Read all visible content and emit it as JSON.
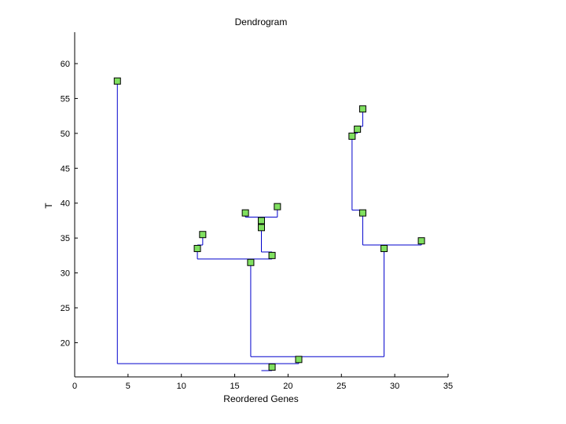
{
  "chart_data": {
    "type": "dendrogram",
    "title": "Dendrogram",
    "xlabel": "Reordered Genes",
    "ylabel": "T",
    "xlim": [
      0,
      35
    ],
    "ylim": [
      15.1,
      64.5
    ],
    "xticks": [
      0,
      5,
      10,
      15,
      20,
      25,
      30,
      35
    ],
    "yticks": [
      20,
      25,
      30,
      35,
      40,
      45,
      50,
      55,
      60
    ],
    "grid": false,
    "line_color": "#0000cc",
    "marker_fill": "#80e060",
    "segments": [
      {
        "x1": 4,
        "y1": 57.5,
        "x2": 4,
        "y2": 17
      },
      {
        "x1": 4,
        "y1": 17,
        "x2": 21,
        "y2": 17
      },
      {
        "x1": 21,
        "y1": 17,
        "x2": 21,
        "y2": 17.6
      },
      {
        "x1": 17.5,
        "y1": 16,
        "x2": 18.5,
        "y2": 16
      },
      {
        "x1": 18.5,
        "y1": 16,
        "x2": 18.5,
        "y2": 16.5
      },
      {
        "x1": 16.5,
        "y1": 18,
        "x2": 29,
        "y2": 18
      },
      {
        "x1": 16.5,
        "y1": 18,
        "x2": 16.5,
        "y2": 31.5
      },
      {
        "x1": 29,
        "y1": 18,
        "x2": 29,
        "y2": 33.5
      },
      {
        "x1": 11.5,
        "y1": 32,
        "x2": 18.5,
        "y2": 32
      },
      {
        "x1": 11.5,
        "y1": 32,
        "x2": 11.5,
        "y2": 33.5
      },
      {
        "x1": 18.5,
        "y1": 32,
        "x2": 18.5,
        "y2": 32.5
      },
      {
        "x1": 11.5,
        "y1": 34,
        "x2": 12,
        "y2": 34
      },
      {
        "x1": 12,
        "y1": 34,
        "x2": 12,
        "y2": 35.5
      },
      {
        "x1": 17.5,
        "y1": 33,
        "x2": 18.5,
        "y2": 33
      },
      {
        "x1": 17.5,
        "y1": 33,
        "x2": 17.5,
        "y2": 36.5
      },
      {
        "x1": 18.5,
        "y1": 33,
        "x2": 18.5,
        "y2": 32.5
      },
      {
        "x1": 17.5,
        "y1": 36.5,
        "x2": 17.5,
        "y2": 37.5
      },
      {
        "x1": 16,
        "y1": 38,
        "x2": 19,
        "y2": 38
      },
      {
        "x1": 16,
        "y1": 38,
        "x2": 16,
        "y2": 38.6
      },
      {
        "x1": 19,
        "y1": 38,
        "x2": 19,
        "y2": 39.5
      },
      {
        "x1": 27,
        "y1": 34,
        "x2": 32.5,
        "y2": 34
      },
      {
        "x1": 27,
        "y1": 34,
        "x2": 27,
        "y2": 38.6
      },
      {
        "x1": 32.5,
        "y1": 34,
        "x2": 32.5,
        "y2": 34.6
      },
      {
        "x1": 26,
        "y1": 39,
        "x2": 27,
        "y2": 39
      },
      {
        "x1": 26,
        "y1": 39,
        "x2": 26,
        "y2": 49.6
      },
      {
        "x1": 26,
        "y1": 50,
        "x2": 26.5,
        "y2": 50
      },
      {
        "x1": 26.5,
        "y1": 50,
        "x2": 26.5,
        "y2": 50.6
      },
      {
        "x1": 26.5,
        "y1": 51,
        "x2": 27,
        "y2": 51
      },
      {
        "x1": 27,
        "y1": 51,
        "x2": 27,
        "y2": 53.5
      }
    ],
    "nodes": [
      {
        "x": 4,
        "y": 57.5
      },
      {
        "x": 21,
        "y": 17.6
      },
      {
        "x": 18.5,
        "y": 16.5
      },
      {
        "x": 16.5,
        "y": 31.5
      },
      {
        "x": 29,
        "y": 33.5
      },
      {
        "x": 11.5,
        "y": 33.5
      },
      {
        "x": 12,
        "y": 35.5
      },
      {
        "x": 18.5,
        "y": 32.5
      },
      {
        "x": 17.5,
        "y": 36.5
      },
      {
        "x": 17.5,
        "y": 37.5
      },
      {
        "x": 16,
        "y": 38.6
      },
      {
        "x": 19,
        "y": 39.5
      },
      {
        "x": 32.5,
        "y": 34.6
      },
      {
        "x": 27,
        "y": 38.6
      },
      {
        "x": 26,
        "y": 49.6
      },
      {
        "x": 26.5,
        "y": 50.6
      },
      {
        "x": 27,
        "y": 53.5
      }
    ]
  }
}
